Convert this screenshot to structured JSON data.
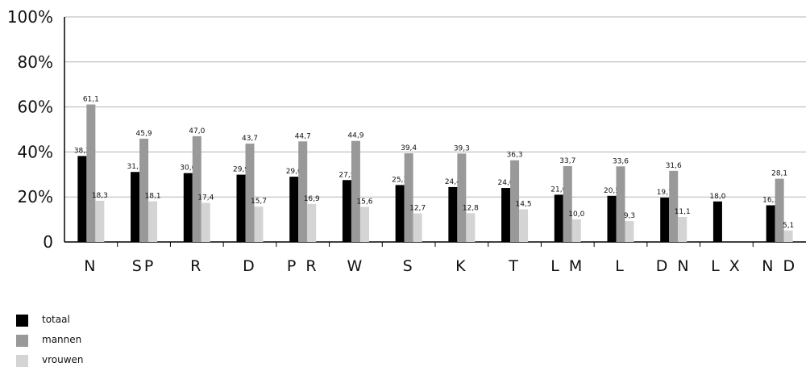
{
  "chart_data": {
    "type": "bar",
    "categories": [
      "N",
      "SP",
      "R",
      "D",
      "P R",
      "W",
      "S",
      "K",
      "T",
      "L M",
      "L",
      "D N",
      "L X",
      "N D"
    ],
    "series": [
      {
        "name": "totaal",
        "color": "#000000",
        "values": [
          38.2,
          31.1,
          30.6,
          29.9,
          29.0,
          27.5,
          25.3,
          24.4,
          24.0,
          21.0,
          20.5,
          19.7,
          18.0,
          16.3
        ]
      },
      {
        "name": "mannen",
        "color": "#999999",
        "values": [
          61.1,
          45.9,
          47.0,
          43.7,
          44.7,
          44.9,
          39.4,
          39.3,
          36.3,
          33.7,
          33.6,
          31.6,
          null,
          28.1
        ]
      },
      {
        "name": "vrouwen",
        "color": "#d4d4d4",
        "values": [
          18.3,
          18.1,
          17.4,
          15.7,
          16.9,
          15.6,
          12.7,
          12.8,
          14.5,
          10.0,
          9.3,
          11.1,
          null,
          5.1
        ]
      }
    ],
    "value_labels": [
      [
        "38,2",
        "61,1",
        "18,3"
      ],
      [
        "31,1",
        "45,9",
        "18,1"
      ],
      [
        "30,6",
        "47,0",
        "17,4"
      ],
      [
        "29,9",
        "43,7",
        "15,7"
      ],
      [
        "29,0",
        "44,7",
        "16,9"
      ],
      [
        "27,5",
        "44,9",
        "15,6"
      ],
      [
        "25,3",
        "39,4",
        "12,7"
      ],
      [
        "24,4",
        "39,3",
        "12,8"
      ],
      [
        "24,0",
        "36,3",
        "14,5"
      ],
      [
        "21,0",
        "33,7",
        "10,0"
      ],
      [
        "20,5",
        "33,6",
        "9,3"
      ],
      [
        "19,7",
        "31,6",
        "11,1"
      ],
      [
        "18,0",
        "",
        ""
      ],
      [
        "16,3",
        "28,1",
        "5,1"
      ]
    ],
    "y_ticks": [
      "0",
      "20%",
      "40%",
      "60%",
      "80%",
      "100%"
    ],
    "ylim": [
      0,
      100
    ],
    "grid": true,
    "legend_position": "bottom-left"
  }
}
